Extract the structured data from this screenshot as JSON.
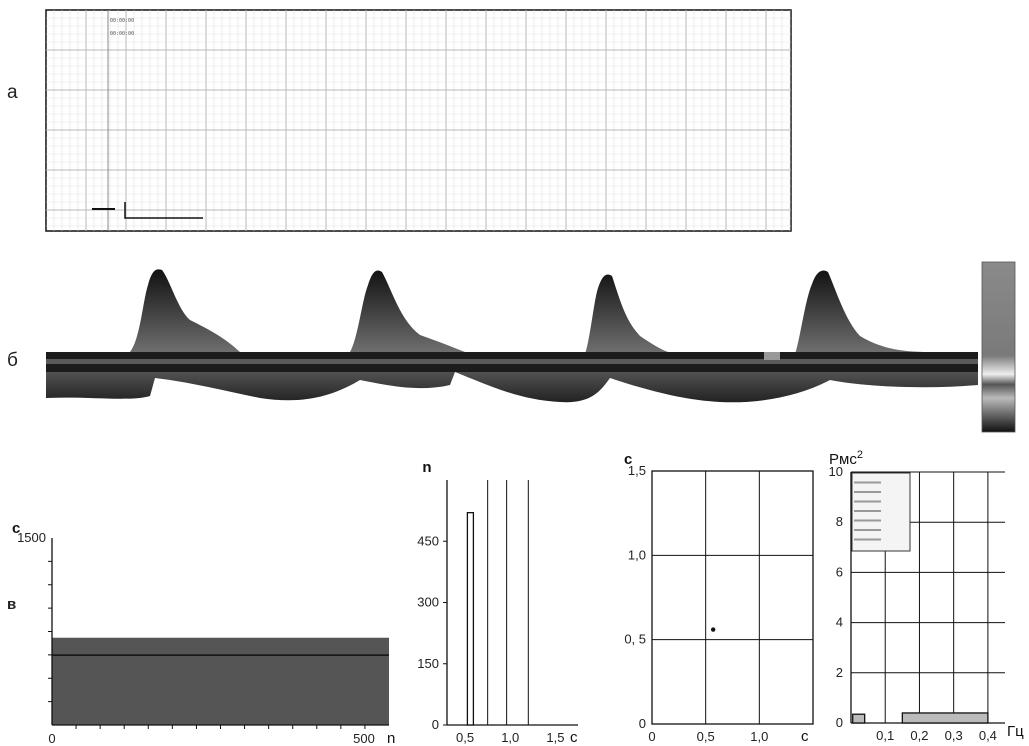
{
  "panels": {
    "a": "а",
    "b": "б",
    "v": "в"
  },
  "ecg_strip": {
    "header_lines": [
      "00:00:00",
      "00:00:00"
    ]
  },
  "chart_data": [
    {
      "type": "area",
      "name_in_figure": "rhythmogram",
      "ylabel": "с",
      "xlabel": "n",
      "y_ticks": [
        1500
      ],
      "x_ticks": [
        0,
        500
      ],
      "x_tick_labels": [
        "0",
        "500"
      ],
      "xlim": [
        0,
        540
      ],
      "ylim": [
        0,
        1500
      ],
      "series_level": 560,
      "fill_top": 700,
      "color_fill": "#555555"
    },
    {
      "type": "bar",
      "name_in_figure": "histogram",
      "ylabel": "n",
      "xlabel": "с",
      "x_ticks": [
        0.5,
        1.0,
        1.5
      ],
      "x_tick_labels": [
        "0,5",
        "1,0",
        "1,5"
      ],
      "y_ticks": [
        0,
        150,
        300,
        450
      ],
      "y_tick_labels": [
        "0",
        "150",
        "300",
        "450"
      ],
      "xlim": [
        0.3,
        1.75
      ],
      "ylim": [
        0,
        600
      ],
      "bar_x": 0.57,
      "bar_value": 520,
      "vlines": [
        0.75,
        0.96,
        1.2
      ]
    },
    {
      "type": "scatter",
      "name_in_figure": "scatterogram",
      "ylabel": "с",
      "xlabel": "с",
      "x_ticks": [
        0,
        0.5,
        1.0
      ],
      "x_tick_labels": [
        "0",
        "0,5",
        "1,0"
      ],
      "y_ticks": [
        0,
        0.5,
        1.0,
        1.5
      ],
      "y_tick_labels": [
        "0",
        "0, 5",
        "1,0",
        "1,5"
      ],
      "xlim": [
        0,
        1.5
      ],
      "ylim": [
        0,
        1.5
      ],
      "points": [
        [
          0.57,
          0.56
        ]
      ]
    },
    {
      "type": "bar",
      "name_in_figure": "spectrum",
      "ylabel": "Рмс²",
      "ylabel_base": "Рмс",
      "ylabel_sup": "2",
      "xlabel": "Гц",
      "x_ticks": [
        0.1,
        0.2,
        0.3,
        0.4
      ],
      "x_tick_labels": [
        "0,1",
        "0,2",
        "0,3",
        "0,4"
      ],
      "y_ticks": [
        0,
        2,
        4,
        6,
        8,
        10
      ],
      "y_tick_labels": [
        "0",
        "2",
        "4",
        "6",
        "8",
        "10"
      ],
      "xlim": [
        0,
        0.45
      ],
      "ylim": [
        0,
        10
      ],
      "bands": [
        {
          "x0": 0.005,
          "x1": 0.04,
          "value": 0.35
        },
        {
          "x0": 0.15,
          "x1": 0.4,
          "value": 0.4
        }
      ]
    }
  ]
}
